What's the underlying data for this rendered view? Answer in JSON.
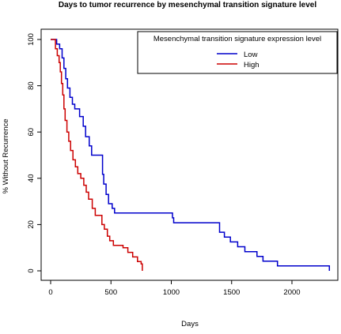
{
  "chart_data": {
    "type": "line",
    "title": "Days to tumor recurrence by mesenchymal transition signature level",
    "xlabel": "Days",
    "ylabel": "% Without Recurrence",
    "xlim": [
      0,
      2400
    ],
    "ylim": [
      0,
      100
    ],
    "x_ticks": [
      0,
      500,
      1000,
      1500,
      2000
    ],
    "y_ticks": [
      0,
      20,
      40,
      60,
      80,
      100
    ],
    "grid": false,
    "legend": {
      "title": "Mesenchymal transition signature expression level",
      "position": "top-right"
    },
    "series": [
      {
        "name": "Low",
        "color": "#0000cc",
        "step": true,
        "x": [
          0,
          50,
          75,
          95,
          110,
          125,
          140,
          160,
          180,
          200,
          240,
          270,
          290,
          320,
          340,
          430,
          440,
          460,
          480,
          510,
          530,
          1010,
          1020,
          1400,
          1440,
          1490,
          1550,
          1610,
          1710,
          1760,
          1880,
          2310
        ],
        "y": [
          100,
          98,
          96,
          92,
          87.5,
          83,
          79,
          75,
          72,
          70,
          66.7,
          62.5,
          58,
          54,
          50,
          41.7,
          37.5,
          33,
          29,
          27,
          25,
          22.9,
          20.8,
          16.7,
          14.6,
          12.5,
          10.4,
          8.3,
          6.2,
          4.2,
          2.1,
          0
        ]
      },
      {
        "name": "High",
        "color": "#cc0000",
        "step": true,
        "x": [
          0,
          40,
          55,
          70,
          80,
          90,
          100,
          110,
          120,
          135,
          150,
          165,
          185,
          205,
          225,
          250,
          275,
          295,
          315,
          345,
          370,
          425,
          445,
          470,
          490,
          520,
          600,
          640,
          680,
          720,
          750,
          760
        ],
        "y": [
          100,
          96,
          93,
          90,
          86,
          81,
          76,
          70,
          65,
          60,
          56,
          52,
          48,
          45,
          42,
          40,
          37,
          34,
          31,
          27,
          24,
          20,
          18,
          15,
          13,
          11,
          10,
          8,
          6,
          4,
          3,
          0
        ]
      }
    ]
  }
}
